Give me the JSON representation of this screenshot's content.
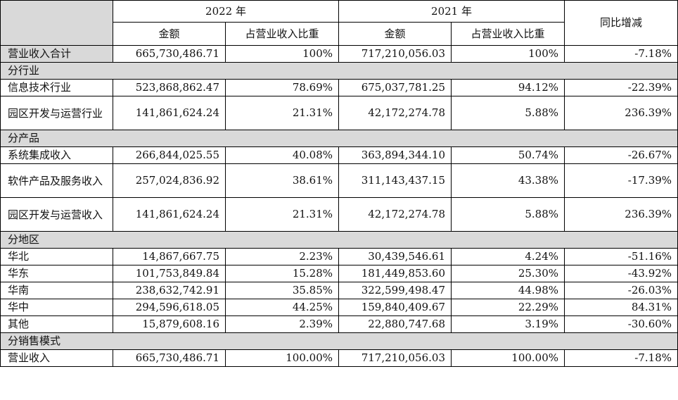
{
  "header": {
    "year_2022": "2022 年",
    "year_2021": "2021 年",
    "yoy": "同比增减",
    "amount": "金额",
    "ratio": "占营业收入比重"
  },
  "rows": {
    "total": {
      "label": "营业收入合计",
      "a2022": "665,730,486.71",
      "r2022": "100%",
      "a2021": "717,210,056.03",
      "r2021": "100%",
      "yoy": "-7.18%"
    },
    "sec_industry": "分行业",
    "it": {
      "label": "信息技术行业",
      "a2022": "523,868,862.47",
      "r2022": "78.69%",
      "a2021": "675,037,781.25",
      "r2021": "94.12%",
      "yoy": "-22.39%"
    },
    "park_ind": {
      "label": "园区开发与运营行业",
      "a2022": "141,861,624.24",
      "r2022": "21.31%",
      "a2021": "42,172,274.78",
      "r2021": "5.88%",
      "yoy": "236.39%"
    },
    "sec_product": "分产品",
    "sysint": {
      "label": "系统集成收入",
      "a2022": "266,844,025.55",
      "r2022": "40.08%",
      "a2021": "363,894,344.10",
      "r2021": "50.74%",
      "yoy": "-26.67%"
    },
    "software": {
      "label": "软件产品及服务收入",
      "a2022": "257,024,836.92",
      "r2022": "38.61%",
      "a2021": "311,143,437.15",
      "r2021": "43.38%",
      "yoy": "-17.39%"
    },
    "park_prod": {
      "label": "园区开发与运营收入",
      "a2022": "141,861,624.24",
      "r2022": "21.31%",
      "a2021": "42,172,274.78",
      "r2021": "5.88%",
      "yoy": "236.39%"
    },
    "sec_region": "分地区",
    "north": {
      "label": "华北",
      "a2022": "14,867,667.75",
      "r2022": "2.23%",
      "a2021": "30,439,546.61",
      "r2021": "4.24%",
      "yoy": "-51.16%"
    },
    "east": {
      "label": "华东",
      "a2022": "101,753,849.84",
      "r2022": "15.28%",
      "a2021": "181,449,853.60",
      "r2021": "25.30%",
      "yoy": "-43.92%"
    },
    "south": {
      "label": "华南",
      "a2022": "238,632,742.91",
      "r2022": "35.85%",
      "a2021": "322,599,498.47",
      "r2021": "44.98%",
      "yoy": "-26.03%"
    },
    "central": {
      "label": "华中",
      "a2022": "294,596,618.05",
      "r2022": "44.25%",
      "a2021": "159,840,409.67",
      "r2021": "22.29%",
      "yoy": "84.31%"
    },
    "other": {
      "label": "其他",
      "a2022": "15,879,608.16",
      "r2022": "2.39%",
      "a2021": "22,880,747.68",
      "r2021": "3.19%",
      "yoy": "-30.60%"
    },
    "sec_sales": "分销售模式",
    "revenue": {
      "label": "营业收入",
      "a2022": "665,730,486.71",
      "r2022": "100.00%",
      "a2021": "717,210,056.03",
      "r2021": "100.00%",
      "yoy": "-7.18%"
    }
  }
}
